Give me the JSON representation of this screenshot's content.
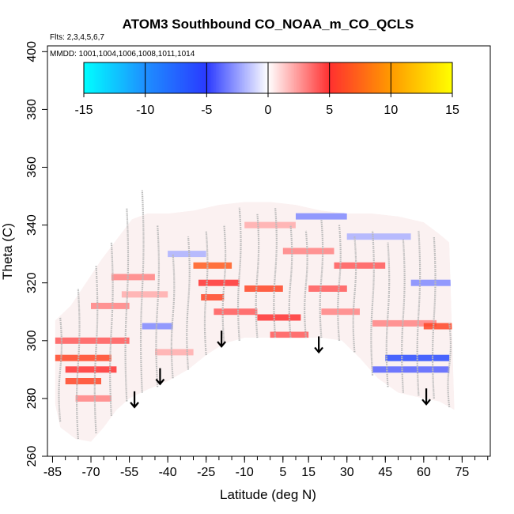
{
  "chart_data": {
    "type": "heatmap",
    "title": "ATOM3 Southbound CO_NOAA_m_CO_QCLS",
    "flights_label": "Flts: 2,3,4,5,6,7",
    "mmdd_label": "MMDD: 1001,1004,1006,1008,1011,1014",
    "xlabel": "Latitude (deg N)",
    "ylabel": "Theta (C)",
    "xlim": [
      -87,
      86
    ],
    "ylim": [
      260,
      402
    ],
    "x_tick_labels": [
      "-85",
      "-70",
      "-55",
      "-40",
      "-25",
      "-10",
      "5",
      "15",
      "30",
      "45",
      "60",
      "75"
    ],
    "x_tick_values": [
      -85,
      -70,
      -55,
      -40,
      -25,
      -10,
      5,
      15,
      30,
      45,
      60,
      75
    ],
    "x_minor_step": 5,
    "y_tick_labels": [
      "260",
      "280",
      "300",
      "320",
      "340",
      "360",
      "380",
      "400"
    ],
    "y_tick_values": [
      260,
      280,
      300,
      320,
      340,
      360,
      380,
      400
    ],
    "colorbar": {
      "min": -15,
      "max": 15,
      "tick_labels": [
        "-15",
        "-10",
        "-5",
        "0",
        "5",
        "10",
        "15"
      ],
      "tick_values": [
        -15,
        -10,
        -5,
        0,
        5,
        10,
        15
      ],
      "colors": [
        "#00ffff",
        "#1e8fff",
        "#2a3aff",
        "#ffffff",
        "#ff3030",
        "#ff9a00",
        "#ffff00"
      ]
    },
    "arrows": [
      {
        "lat": -53,
        "theta": 277
      },
      {
        "lat": -43,
        "theta": 285
      },
      {
        "lat": -19,
        "theta": 298
      },
      {
        "lat": 19,
        "theta": 296
      },
      {
        "lat": 61,
        "theta": 278
      }
    ],
    "envelope_top": [
      {
        "lat": -84,
        "theta": 307
      },
      {
        "lat": -78,
        "theta": 312
      },
      {
        "lat": -72,
        "theta": 320
      },
      {
        "lat": -66,
        "theta": 328
      },
      {
        "lat": -60,
        "theta": 335
      },
      {
        "lat": -54,
        "theta": 342
      },
      {
        "lat": -48,
        "theta": 344
      },
      {
        "lat": -40,
        "theta": 344
      },
      {
        "lat": -30,
        "theta": 345
      },
      {
        "lat": -20,
        "theta": 347
      },
      {
        "lat": -10,
        "theta": 348
      },
      {
        "lat": 0,
        "theta": 348
      },
      {
        "lat": 10,
        "theta": 347
      },
      {
        "lat": 20,
        "theta": 345
      },
      {
        "lat": 30,
        "theta": 344
      },
      {
        "lat": 40,
        "theta": 344
      },
      {
        "lat": 50,
        "theta": 343
      },
      {
        "lat": 60,
        "theta": 341
      },
      {
        "lat": 66,
        "theta": 337
      },
      {
        "lat": 70,
        "theta": 334
      }
    ],
    "envelope_bottom": [
      {
        "lat": 72,
        "theta": 276
      },
      {
        "lat": 66,
        "theta": 279
      },
      {
        "lat": 60,
        "theta": 280
      },
      {
        "lat": 50,
        "theta": 282
      },
      {
        "lat": 42,
        "theta": 287
      },
      {
        "lat": 35,
        "theta": 294
      },
      {
        "lat": 28,
        "theta": 300
      },
      {
        "lat": 20,
        "theta": 301
      },
      {
        "lat": 10,
        "theta": 301
      },
      {
        "lat": 0,
        "theta": 301
      },
      {
        "lat": -10,
        "theta": 301
      },
      {
        "lat": -18,
        "theta": 299
      },
      {
        "lat": -25,
        "theta": 295
      },
      {
        "lat": -32,
        "theta": 290
      },
      {
        "lat": -40,
        "theta": 286
      },
      {
        "lat": -48,
        "theta": 283
      },
      {
        "lat": -55,
        "theta": 280
      },
      {
        "lat": -60,
        "theta": 276
      },
      {
        "lat": -65,
        "theta": 270
      },
      {
        "lat": -70,
        "theta": 265
      },
      {
        "lat": -76,
        "theta": 266
      },
      {
        "lat": -82,
        "theta": 270
      },
      {
        "lat": -84,
        "theta": 278
      }
    ],
    "anomaly_bands": [
      {
        "lat0": -84,
        "lat1": -55,
        "theta": 300,
        "value": 4
      },
      {
        "lat0": -84,
        "lat1": -62,
        "theta": 294,
        "value": 6
      },
      {
        "lat0": -80,
        "lat1": -60,
        "theta": 290,
        "value": 5
      },
      {
        "lat0": -80,
        "lat1": -66,
        "theta": 286,
        "value": 6
      },
      {
        "lat0": -76,
        "lat1": -62,
        "theta": 280,
        "value": 3
      },
      {
        "lat0": -70,
        "lat1": -55,
        "theta": 312,
        "value": 3
      },
      {
        "lat0": -62,
        "lat1": -45,
        "theta": 322,
        "value": 3
      },
      {
        "lat0": -58,
        "lat1": -40,
        "theta": 316,
        "value": 2
      },
      {
        "lat0": -50,
        "lat1": -38,
        "theta": 305,
        "value": -3
      },
      {
        "lat0": -30,
        "lat1": -15,
        "theta": 326,
        "value": 7
      },
      {
        "lat0": -28,
        "lat1": -12,
        "theta": 320,
        "value": 5
      },
      {
        "lat0": -27,
        "lat1": -18,
        "theta": 315,
        "value": 6
      },
      {
        "lat0": -22,
        "lat1": -5,
        "theta": 310,
        "value": 4
      },
      {
        "lat0": -10,
        "lat1": 5,
        "theta": 318,
        "value": 6
      },
      {
        "lat0": -5,
        "lat1": 12,
        "theta": 308,
        "value": 5
      },
      {
        "lat0": 0,
        "lat1": 15,
        "theta": 302,
        "value": 4
      },
      {
        "lat0": 5,
        "lat1": 25,
        "theta": 331,
        "value": 3
      },
      {
        "lat0": 15,
        "lat1": 30,
        "theta": 318,
        "value": 4
      },
      {
        "lat0": 20,
        "lat1": 35,
        "theta": 310,
        "value": 3
      },
      {
        "lat0": 10,
        "lat1": 30,
        "theta": 343,
        "value": -3
      },
      {
        "lat0": 30,
        "lat1": 55,
        "theta": 336,
        "value": -2
      },
      {
        "lat0": 25,
        "lat1": 45,
        "theta": 326,
        "value": 4
      },
      {
        "lat0": 40,
        "lat1": 65,
        "theta": 306,
        "value": 3
      },
      {
        "lat0": 45,
        "lat1": 70,
        "theta": 294,
        "value": -6
      },
      {
        "lat0": 40,
        "lat1": 70,
        "theta": 290,
        "value": -4
      },
      {
        "lat0": 60,
        "lat1": 72,
        "theta": 305,
        "value": 6
      },
      {
        "lat0": 55,
        "lat1": 72,
        "theta": 320,
        "value": -3
      },
      {
        "lat0": -10,
        "lat1": 10,
        "theta": 340,
        "value": 2
      },
      {
        "lat0": -40,
        "lat1": -25,
        "theta": 330,
        "value": -2
      },
      {
        "lat0": -45,
        "lat1": -30,
        "theta": 296,
        "value": 2
      }
    ],
    "flight_tracks": [
      {
        "lat": -82,
        "theta0": 272,
        "theta1": 308
      },
      {
        "lat": -75,
        "theta0": 266,
        "theta1": 318
      },
      {
        "lat": -68,
        "theta0": 268,
        "theta1": 326
      },
      {
        "lat": -62,
        "theta0": 274,
        "theta1": 334
      },
      {
        "lat": -56,
        "theta0": 279,
        "theta1": 346
      },
      {
        "lat": -50,
        "theta0": 282,
        "theta1": 352
      },
      {
        "lat": -44,
        "theta0": 284,
        "theta1": 340
      },
      {
        "lat": -38,
        "theta0": 287,
        "theta1": 330
      },
      {
        "lat": -32,
        "theta0": 290,
        "theta1": 336
      },
      {
        "lat": -25,
        "theta0": 295,
        "theta1": 338
      },
      {
        "lat": -18,
        "theta0": 299,
        "theta1": 340
      },
      {
        "lat": -12,
        "theta0": 300,
        "theta1": 346
      },
      {
        "lat": -5,
        "theta0": 301,
        "theta1": 344
      },
      {
        "lat": 2,
        "theta0": 301,
        "theta1": 346
      },
      {
        "lat": 8,
        "theta0": 301,
        "theta1": 340
      },
      {
        "lat": 14,
        "theta0": 301,
        "theta1": 338
      },
      {
        "lat": 20,
        "theta0": 301,
        "theta1": 342
      },
      {
        "lat": 27,
        "theta0": 300,
        "theta1": 340
      },
      {
        "lat": 33,
        "theta0": 296,
        "theta1": 336
      },
      {
        "lat": 40,
        "theta0": 288,
        "theta1": 338
      },
      {
        "lat": 46,
        "theta0": 284,
        "theta1": 334
      },
      {
        "lat": 52,
        "theta0": 282,
        "theta1": 335
      },
      {
        "lat": 58,
        "theta0": 281,
        "theta1": 338
      },
      {
        "lat": 64,
        "theta0": 280,
        "theta1": 336
      },
      {
        "lat": 70,
        "theta0": 277,
        "theta1": 306
      }
    ]
  }
}
